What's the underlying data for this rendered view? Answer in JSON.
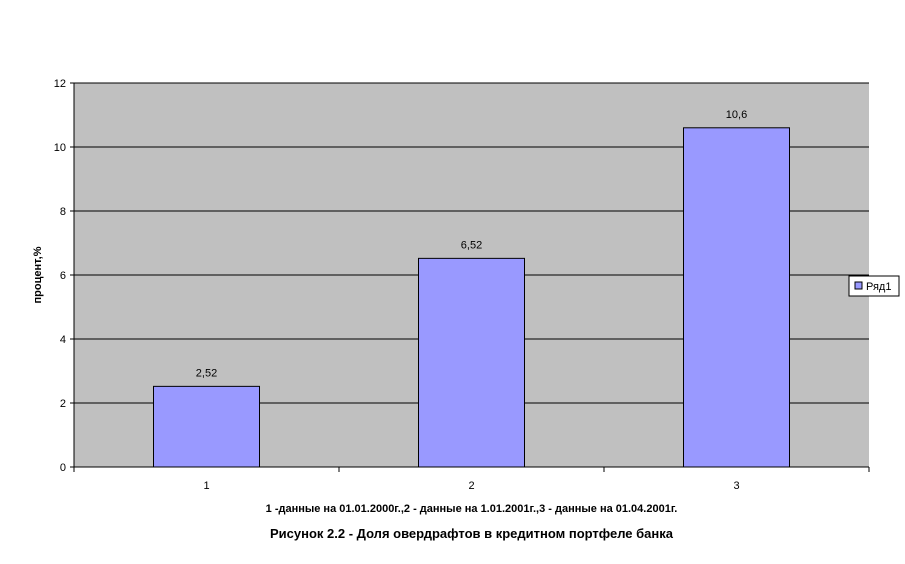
{
  "chart_data": {
    "type": "bar",
    "categories": [
      "1",
      "2",
      "3"
    ],
    "series": [
      {
        "name": "Ряд1",
        "values": [
          2.52,
          6.52,
          10.6
        ],
        "labels": [
          "2,52",
          "6,52",
          "10,6"
        ]
      }
    ],
    "ylim": [
      0,
      12
    ],
    "yticks": [
      0,
      2,
      4,
      6,
      8,
      10,
      12
    ],
    "ylabel": "процент,%",
    "xlabel": "1 -данные на 01.01.2000г.,2 - данные на 1.01.2001г.,3 - данные на 01.04.2001г.",
    "title": "Рисунок 2.2 - Доля овердрафтов в кредитном портфеле банка",
    "grid": true,
    "legend": "right",
    "colors": {
      "bar": "#9999ff",
      "plot_bg": "#c0c0c0",
      "grid": "#000000"
    }
  }
}
